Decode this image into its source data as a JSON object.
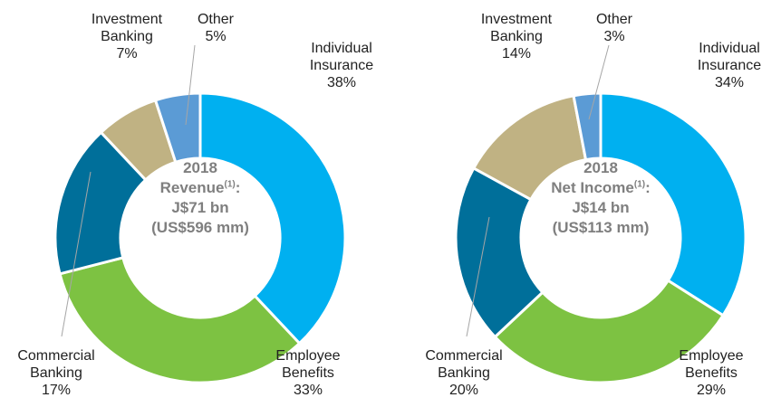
{
  "chart_data": [
    {
      "type": "donut",
      "categories": [
        "Individual Insurance",
        "Employee Benefits",
        "Commercial Banking",
        "Investment Banking",
        "Other"
      ],
      "values": [
        38,
        33,
        17,
        7,
        5
      ],
      "value_labels": [
        "38%",
        "33%",
        "17%",
        "7%",
        "5%"
      ],
      "colors": [
        "#00b0f0",
        "#7dc242",
        "#006f9a",
        "#c0b283",
        "#5b9bd5"
      ],
      "center": {
        "year": "2018",
        "label": "Revenue",
        "note": "(1)",
        "suffix": ":",
        "amount": "J$71 bn",
        "usd": "(US$596 mm)"
      }
    },
    {
      "type": "donut",
      "categories": [
        "Individual Insurance",
        "Employee Benefits",
        "Commercial Banking",
        "Investment Banking",
        "Other"
      ],
      "values": [
        34,
        29,
        20,
        14,
        3
      ],
      "value_labels": [
        "34%",
        "29%",
        "20%",
        "14%",
        "3%"
      ],
      "colors": [
        "#00b0f0",
        "#7dc242",
        "#006f9a",
        "#c0b283",
        "#5b9bd5"
      ],
      "center": {
        "year": "2018",
        "label": "Net Income",
        "note": "(1)",
        "suffix": ":",
        "amount": "J$14 bn",
        "usd": "(US$113 mm)"
      }
    }
  ]
}
